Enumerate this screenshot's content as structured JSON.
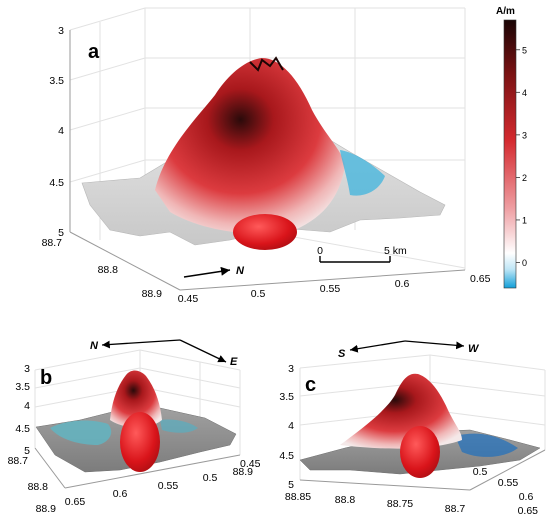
{
  "figure": {
    "panels": [
      {
        "label": "a",
        "z_ticks": [
          "3",
          "3.5",
          "4",
          "4.5",
          "5"
        ],
        "y_ticks": [
          "88.7",
          "88.8",
          "88.9"
        ],
        "x_ticks": [
          "0.45",
          "0.5",
          "0.55",
          "0.6",
          "0.65"
        ],
        "direction_labels": [
          "N"
        ],
        "scale_bar": {
          "start": "0",
          "end": "5 km"
        }
      },
      {
        "label": "b",
        "z_ticks": [
          "3",
          "3.5",
          "4",
          "4.5",
          "5"
        ],
        "y_ticks": [
          "88.7",
          "88.8",
          "88.9"
        ],
        "x_ticks": [
          "0.65",
          "0.6",
          "0.55",
          "0.5",
          "0.45"
        ],
        "direction_labels": [
          "N",
          "E"
        ]
      },
      {
        "label": "c",
        "z_ticks": [
          "3",
          "3.5",
          "4",
          "4.5",
          "5"
        ],
        "y_ticks": [
          "88.85",
          "88.8",
          "88.75",
          "88.7"
        ],
        "x_ticks": [
          "0.5",
          "0.55",
          "0.6",
          "0.65"
        ],
        "extra_left_tick": "88.9",
        "direction_labels": [
          "S",
          "W"
        ]
      }
    ],
    "colorbar": {
      "unit": "A/m",
      "ticks": [
        "5",
        "4",
        "3",
        "2",
        "1",
        "0"
      ],
      "min": -0.6,
      "max": 5.7,
      "colors": {
        "top": "#1a0505",
        "upper": "#c8262b",
        "mid": "#f1c9c9",
        "white": "#ffffff",
        "low": "#14a9e0"
      }
    }
  }
}
